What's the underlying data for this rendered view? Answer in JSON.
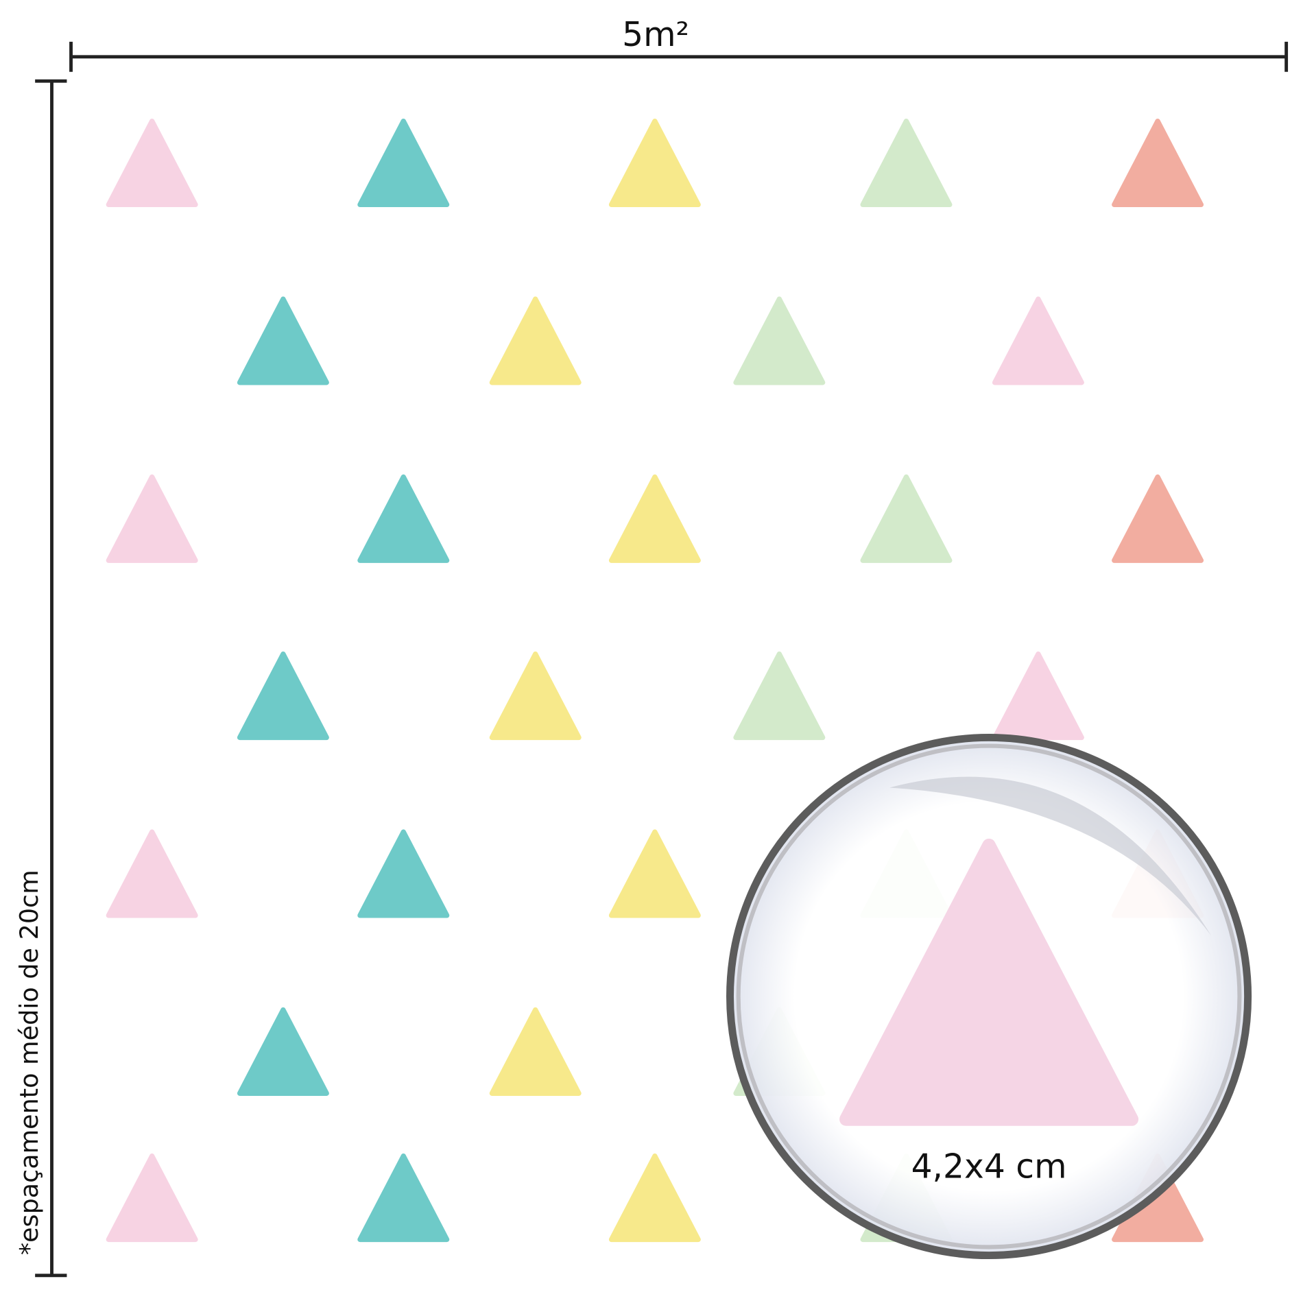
{
  "width_label": "5m²",
  "spacing_note": "*espaçamento médio de 20cm",
  "magnifier": {
    "size_label": "4,2x4 cm"
  }
}
